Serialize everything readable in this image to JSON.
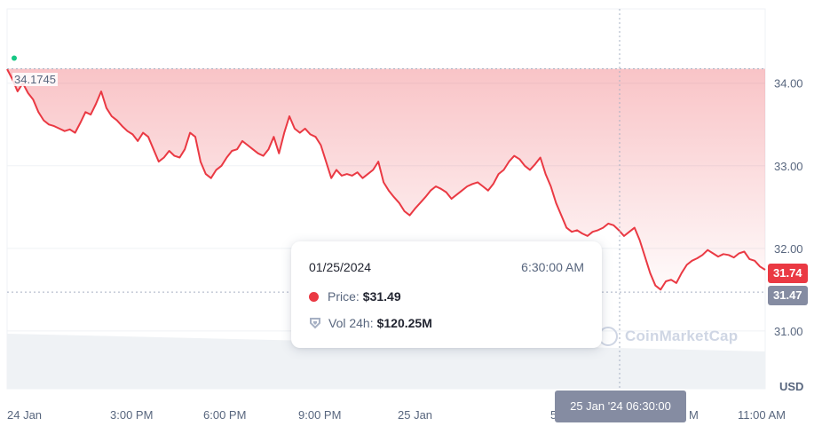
{
  "chart_data": {
    "type": "area",
    "currency": "USD",
    "x_tick_labels": [
      "24 Jan",
      "3:00 PM",
      "6:00 PM",
      "9:00 PM",
      "25 Jan",
      "5",
      "M",
      "11:00 AM"
    ],
    "y_tick_labels": [
      "34.00",
      "33.00",
      "32.00",
      "31.00"
    ],
    "ylim": [
      30.3,
      34.9
    ],
    "grid": true,
    "start_price_label": "34.1745",
    "start_price": 34.1745,
    "current_price_label": "31.74",
    "current_price": 31.74,
    "hover_price_label": "31.47",
    "hover_price": 31.47,
    "hover_x_label": "25 Jan '24 06:30:00",
    "series": [
      {
        "values": [
          34.17,
          34.05,
          33.9,
          34.0,
          33.88,
          33.8,
          33.65,
          33.55,
          33.5,
          33.48,
          33.45,
          33.42,
          33.44,
          33.4,
          33.52,
          33.65,
          33.62,
          33.75,
          33.9,
          33.7,
          33.6,
          33.55,
          33.48,
          33.42,
          33.38,
          33.3,
          33.4,
          33.35,
          33.2,
          33.05,
          33.1,
          33.18,
          33.12,
          33.1,
          33.2,
          33.4,
          33.35,
          33.05,
          32.9,
          32.85,
          32.95,
          33.0,
          33.1,
          33.18,
          33.2,
          33.3,
          33.25,
          33.2,
          33.15,
          33.12,
          33.2,
          33.35,
          33.15,
          33.4,
          33.6,
          33.45,
          33.4,
          33.45,
          33.38,
          33.35,
          33.25,
          33.05,
          32.85,
          32.95,
          32.88,
          32.9,
          32.88,
          32.92,
          32.85,
          32.9,
          32.95,
          33.05,
          32.8,
          32.7,
          32.62,
          32.55,
          32.45,
          32.4,
          32.48,
          32.55,
          32.62,
          32.7,
          32.75,
          32.72,
          32.68,
          32.6,
          32.65,
          32.7,
          32.75,
          32.78,
          32.8,
          32.75,
          32.7,
          32.78,
          32.9,
          32.95,
          33.05,
          33.12,
          33.08,
          33.0,
          32.95,
          33.02,
          33.1,
          32.9,
          32.75,
          32.55,
          32.4,
          32.25,
          32.2,
          32.22,
          32.18,
          32.15,
          32.2,
          32.22,
          32.25,
          32.3,
          32.28,
          32.22,
          32.15,
          32.2,
          32.25,
          32.1,
          31.9,
          31.7,
          31.55,
          31.5,
          31.6,
          31.62,
          31.58,
          31.7,
          31.8,
          31.85,
          31.88,
          31.92,
          31.98,
          31.94,
          31.9,
          31.93,
          31.92,
          31.89,
          31.94,
          31.96,
          31.87,
          31.85,
          31.78,
          31.74
        ]
      }
    ]
  },
  "tooltip": {
    "date": "01/25/2024",
    "time": "6:30:00 AM",
    "price_label": "Price:",
    "price_value": "$31.49",
    "volume_label": "Vol 24h:",
    "volume_value": "$120.25M"
  },
  "watermark": "CoinMarketCap",
  "colors": {
    "line": "#ea3943",
    "area_top": "#f6b9bd",
    "grid": "#eff2f5",
    "axis_text": "#58667e",
    "current_badge": "#ea3943",
    "hover_badge": "#858ca2",
    "volume": "#eff2f5"
  }
}
